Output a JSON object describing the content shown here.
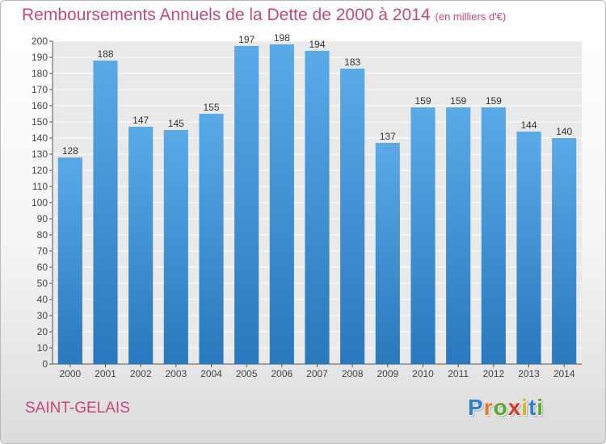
{
  "title": "Remboursements Annuels de la Dette de 2000 à 2014",
  "unit": "(en milliers d'€)",
  "town": "SAINT-GELAIS",
  "logo": {
    "letters": [
      "P",
      "r",
      "o",
      "x",
      "i",
      "t",
      "i"
    ],
    "colors": [
      "#2f7fce",
      "#e07a1f",
      "#5aa82d",
      "#d63b2a",
      "#e0b41f",
      "#2f7fce",
      "#5aa82d"
    ]
  },
  "colors": {
    "accent": "#c8477b",
    "bar_top": "#5aaae8",
    "bar_bottom": "#2a78bd",
    "grid": "#ffffff",
    "plot_bg": "#e9e9e9"
  },
  "chart_data": {
    "type": "bar",
    "categories": [
      "2000",
      "2001",
      "2002",
      "2003",
      "2004",
      "2005",
      "2006",
      "2007",
      "2008",
      "2009",
      "2010",
      "2011",
      "2012",
      "2013",
      "2014"
    ],
    "values": [
      128,
      188,
      147,
      145,
      155,
      197,
      198,
      194,
      183,
      137,
      159,
      159,
      159,
      144,
      140
    ],
    "ylim": [
      0,
      200
    ],
    "yticks": [
      0,
      10,
      20,
      30,
      40,
      50,
      60,
      70,
      80,
      90,
      100,
      110,
      120,
      130,
      140,
      150,
      160,
      170,
      180,
      190,
      200
    ],
    "grid": true,
    "data_labels": true
  }
}
